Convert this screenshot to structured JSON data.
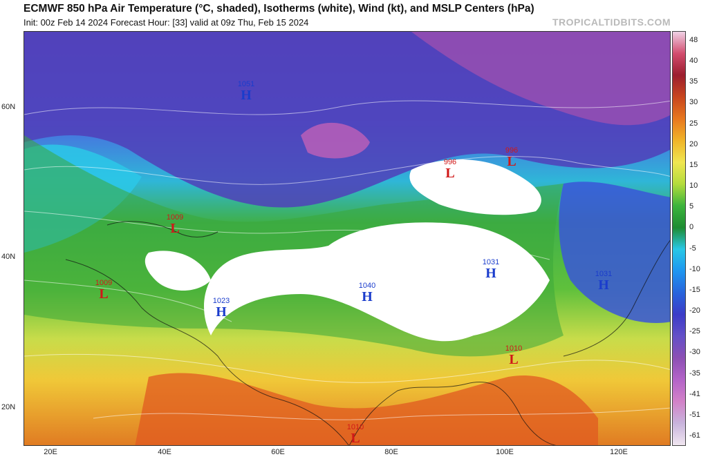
{
  "header": {
    "title": "ECMWF 850 hPa Air Temperature (°C, shaded), Isotherms (white), Wind (kt), and MSLP Centers (hPa)",
    "subtitle": "Init: 00z Feb 14 2024   Forecast Hour: [33]   valid at 09z Thu, Feb 15 2024",
    "brand": "TROPICALTIDBITS.COM"
  },
  "axes": {
    "lat_labels": [
      "60N",
      "40N",
      "20N"
    ],
    "lon_labels": [
      "20E",
      "40E",
      "60E",
      "80E",
      "100E",
      "120E"
    ]
  },
  "colorbar": {
    "labels": [
      "48",
      "40",
      "35",
      "30",
      "25",
      "20",
      "15",
      "10",
      "5",
      "0",
      "-5",
      "-10",
      "-15",
      "-20",
      "-25",
      "-30",
      "-35",
      "-41",
      "-51",
      "-61"
    ],
    "colors": [
      "#f0d2e6",
      "#d24c6e",
      "#9c1e2e",
      "#c8461e",
      "#e8781e",
      "#f0b428",
      "#f0e650",
      "#b4dc3c",
      "#3cb43c",
      "#1e8c32",
      "#28c8e6",
      "#1e96f0",
      "#2864dc",
      "#3c3cc8",
      "#6450c8",
      "#8c50b4",
      "#b464c8",
      "#d282c8",
      "#c8b4dc",
      "#f0e6f0"
    ]
  },
  "pressure_centers": [
    {
      "type": "H",
      "value": "1051"
    },
    {
      "type": "L",
      "value": "996"
    },
    {
      "type": "L",
      "value": "996"
    },
    {
      "type": "L",
      "value": "1009"
    },
    {
      "type": "L",
      "value": "1009"
    },
    {
      "type": "H",
      "value": "1023"
    },
    {
      "type": "H",
      "value": "1040"
    },
    {
      "type": "H",
      "value": "1031"
    },
    {
      "type": "H",
      "value": "1031"
    },
    {
      "type": "L",
      "value": "1010"
    },
    {
      "type": "L",
      "value": "1010"
    }
  ]
}
